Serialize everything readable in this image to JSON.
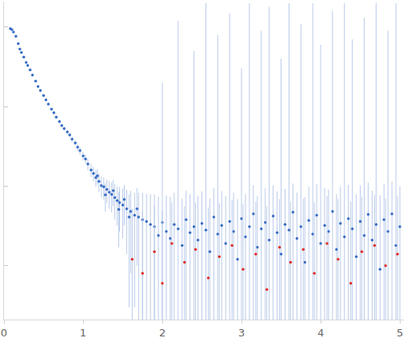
{
  "chart_data": {
    "type": "scatter",
    "log": "y",
    "grid": false,
    "tick_labels": "x",
    "marker": "circle",
    "xlim": [
      0,
      5.05
    ],
    "xticks": [
      0,
      1,
      2,
      3,
      4,
      5
    ],
    "ylim": [
      0.00021,
      2.1
    ],
    "yticks": [
      0.001,
      0.01,
      0.1,
      1
    ],
    "series": [
      {
        "color": "#3a6ec4",
        "x": [
          0.08,
          0.1,
          0.12,
          0.15,
          0.18,
          0.2,
          0.22,
          0.25,
          0.28,
          0.3,
          0.33,
          0.36,
          0.4,
          0.43,
          0.46,
          0.5,
          0.53,
          0.56,
          0.6,
          0.63,
          0.66,
          0.7,
          0.73,
          0.76,
          0.8,
          0.83,
          0.86,
          0.9,
          0.93,
          0.96,
          1.0,
          1.03,
          1.06,
          1.1,
          1.13,
          1.16,
          1.2,
          1.23,
          1.26,
          1.3,
          1.33,
          1.36,
          1.4,
          1.43,
          1.46,
          1.5,
          1.55,
          1.6,
          1.65,
          1.7,
          1.75,
          1.8,
          1.85,
          1.18,
          1.28,
          1.38,
          1.45,
          1.52,
          1.58,
          1.68,
          1.9,
          1.95,
          2.0,
          2.05,
          2.1,
          2.15,
          2.2,
          2.25,
          2.3,
          2.35,
          2.4,
          2.45,
          2.5,
          2.55,
          2.6,
          2.65,
          2.7,
          2.75,
          2.8,
          2.85,
          2.9,
          2.95,
          3.0,
          3.05,
          3.1,
          3.15,
          3.2,
          3.25,
          3.3,
          3.35,
          3.4,
          3.45,
          3.5,
          3.55,
          3.6,
          3.65,
          3.7,
          3.75,
          3.8,
          3.85,
          3.9,
          3.95,
          4.0,
          4.05,
          4.1,
          4.15,
          4.2,
          4.25,
          4.3,
          4.35,
          4.4,
          4.45,
          4.5,
          4.55,
          4.6,
          4.65,
          4.7,
          4.75,
          4.8,
          4.85,
          4.9,
          4.95,
          5.0
        ],
        "values": [
          0.96,
          0.93,
          0.87,
          0.77,
          0.62,
          0.53,
          0.48,
          0.42,
          0.36,
          0.33,
          0.29,
          0.25,
          0.21,
          0.18,
          0.16,
          0.138,
          0.122,
          0.108,
          0.093,
          0.084,
          0.074,
          0.065,
          0.058,
          0.053,
          0.048,
          0.044,
          0.039,
          0.035,
          0.031,
          0.028,
          0.024,
          0.022,
          0.019,
          0.016,
          0.0145,
          0.0128,
          0.0115,
          0.0102,
          0.0098,
          0.0091,
          0.0084,
          0.0079,
          0.0072,
          0.0066,
          0.0062,
          0.0058,
          0.0052,
          0.0048,
          0.0043,
          0.0041,
          0.0038,
          0.0036,
          0.0033,
          0.0135,
          0.0078,
          0.0088,
          0.0051,
          0.0068,
          0.0041,
          0.0052,
          0.0031,
          0.0024,
          0.0035,
          0.0027,
          0.0022,
          0.0033,
          0.0029,
          0.0018,
          0.0038,
          0.0026,
          0.0031,
          0.0021,
          0.0034,
          0.0028,
          0.0015,
          0.0041,
          0.0025,
          0.0032,
          0.0019,
          0.0036,
          0.0027,
          0.0012,
          0.0039,
          0.0023,
          0.0031,
          0.0045,
          0.0017,
          0.0029,
          0.0035,
          0.0021,
          0.0042,
          0.0026,
          0.0014,
          0.0033,
          0.0028,
          0.0047,
          0.0022,
          0.0031,
          0.0011,
          0.0037,
          0.0025,
          0.0043,
          0.0019,
          0.0032,
          0.0027,
          0.0048,
          0.0016,
          0.0034,
          0.0023,
          0.0039,
          0.0029,
          0.0013,
          0.0036,
          0.0024,
          0.0044,
          0.0021,
          0.0033,
          0.0009,
          0.0038,
          0.0027,
          0.0045,
          0.0018,
          0.0031
        ],
        "error": [
          0.02,
          0.02,
          0.018,
          0.016,
          0.013,
          0.011,
          0.01,
          0.009,
          0.008,
          0.007,
          0.006,
          0.006,
          0.005,
          0.005,
          0.004,
          0.004,
          0.004,
          0.004,
          0.0035,
          0.0035,
          0.003,
          0.003,
          0.003,
          0.003,
          0.003,
          0.003,
          0.003,
          0.003,
          0.003,
          0.003,
          0.003,
          0.003,
          0.003,
          0.003,
          0.003,
          0.003,
          0.003,
          0.003,
          0.003,
          0.003,
          0.0032,
          0.0032,
          0.0034,
          0.0034,
          0.0035,
          0.0036,
          0.0038,
          0.004,
          0.004,
          0.0042,
          0.0044,
          0.0045,
          0.0046,
          0.003,
          0.003,
          0.0032,
          0.0034,
          0.0036,
          0.0038,
          0.0042,
          0.0048,
          0.005,
          0.2,
          0.005,
          0.0052,
          0.005,
          1.2,
          0.0052,
          0.005,
          0.0053,
          0.5,
          0.0054,
          0.0052,
          2.0,
          0.0055,
          0.0054,
          0.8,
          0.0055,
          0.0056,
          1.5,
          0.0056,
          0.0057,
          0.3,
          0.0057,
          2.0,
          0.0058,
          0.0058,
          0.9,
          0.0059,
          1.8,
          0.006,
          0.006,
          0.4,
          0.006,
          2.0,
          0.0061,
          0.0061,
          1.1,
          0.0062,
          0.0062,
          2.0,
          0.0063,
          0.6,
          0.0063,
          0.0064,
          1.6,
          0.0064,
          0.0065,
          2.0,
          0.0065,
          0.7,
          0.0066,
          0.0066,
          1.3,
          0.0067,
          0.0067,
          2.0,
          0.0068,
          0.0068,
          0.9,
          0.0069,
          2.0,
          0.0069
        ]
      },
      {
        "color": "#e0302b",
        "x": [
          1.62,
          1.75,
          1.9,
          2.0,
          2.12,
          2.28,
          2.42,
          2.58,
          2.72,
          2.88,
          3.02,
          3.18,
          3.32,
          3.48,
          3.62,
          3.78,
          3.92,
          4.08,
          4.22,
          4.38,
          4.52,
          4.68,
          4.82,
          4.97
        ],
        "values": [
          0.0012,
          0.0008,
          0.0015,
          0.0006,
          0.0019,
          0.0011,
          0.0016,
          0.0007,
          0.0013,
          0.0018,
          0.0009,
          0.0014,
          0.0005,
          0.0017,
          0.0011,
          0.0016,
          0.0008,
          0.0019,
          0.0012,
          0.0006,
          0.0015,
          0.0018,
          0.001,
          0.0014
        ],
        "error": [
          0.004,
          0.004,
          0.0042,
          0.0043,
          0.0044,
          0.0045,
          0.0046,
          0.0047,
          0.0048,
          0.0049,
          0.005,
          0.005,
          0.0051,
          0.0052,
          0.0053,
          0.0054,
          0.0055,
          0.0056,
          0.0057,
          0.0058,
          0.0059,
          0.006,
          0.006,
          0.0061
        ]
      }
    ]
  }
}
